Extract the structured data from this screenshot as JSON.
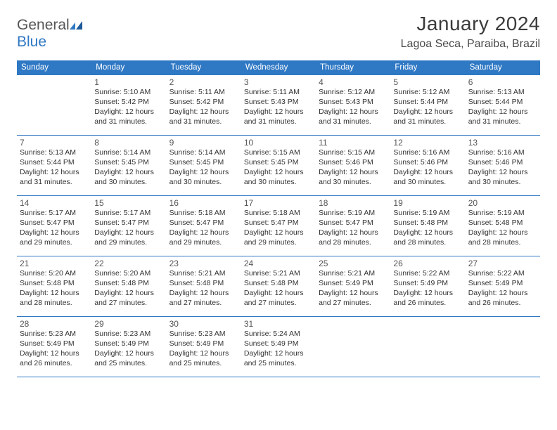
{
  "brand": {
    "name1": "General",
    "name2": "Blue"
  },
  "title": "January 2024",
  "location": "Lagoa Seca, Paraiba, Brazil",
  "colors": {
    "header_bg": "#2f78c4",
    "header_text": "#ffffff",
    "rule": "#2f78c4",
    "text": "#333333",
    "muted": "#555555",
    "page_bg": "#ffffff"
  },
  "typography": {
    "title_fontsize": 28,
    "location_fontsize": 16,
    "dayhead_fontsize": 11.5,
    "cell_fontsize": 10.5,
    "daynum_fontsize": 12
  },
  "day_names": [
    "Sunday",
    "Monday",
    "Tuesday",
    "Wednesday",
    "Thursday",
    "Friday",
    "Saturday"
  ],
  "weeks": [
    [
      null,
      {
        "n": "1",
        "sr": "5:10 AM",
        "ss": "5:42 PM",
        "dl": "12 hours and 31 minutes."
      },
      {
        "n": "2",
        "sr": "5:11 AM",
        "ss": "5:42 PM",
        "dl": "12 hours and 31 minutes."
      },
      {
        "n": "3",
        "sr": "5:11 AM",
        "ss": "5:43 PM",
        "dl": "12 hours and 31 minutes."
      },
      {
        "n": "4",
        "sr": "5:12 AM",
        "ss": "5:43 PM",
        "dl": "12 hours and 31 minutes."
      },
      {
        "n": "5",
        "sr": "5:12 AM",
        "ss": "5:44 PM",
        "dl": "12 hours and 31 minutes."
      },
      {
        "n": "6",
        "sr": "5:13 AM",
        "ss": "5:44 PM",
        "dl": "12 hours and 31 minutes."
      }
    ],
    [
      {
        "n": "7",
        "sr": "5:13 AM",
        "ss": "5:44 PM",
        "dl": "12 hours and 31 minutes."
      },
      {
        "n": "8",
        "sr": "5:14 AM",
        "ss": "5:45 PM",
        "dl": "12 hours and 30 minutes."
      },
      {
        "n": "9",
        "sr": "5:14 AM",
        "ss": "5:45 PM",
        "dl": "12 hours and 30 minutes."
      },
      {
        "n": "10",
        "sr": "5:15 AM",
        "ss": "5:45 PM",
        "dl": "12 hours and 30 minutes."
      },
      {
        "n": "11",
        "sr": "5:15 AM",
        "ss": "5:46 PM",
        "dl": "12 hours and 30 minutes."
      },
      {
        "n": "12",
        "sr": "5:16 AM",
        "ss": "5:46 PM",
        "dl": "12 hours and 30 minutes."
      },
      {
        "n": "13",
        "sr": "5:16 AM",
        "ss": "5:46 PM",
        "dl": "12 hours and 30 minutes."
      }
    ],
    [
      {
        "n": "14",
        "sr": "5:17 AM",
        "ss": "5:47 PM",
        "dl": "12 hours and 29 minutes."
      },
      {
        "n": "15",
        "sr": "5:17 AM",
        "ss": "5:47 PM",
        "dl": "12 hours and 29 minutes."
      },
      {
        "n": "16",
        "sr": "5:18 AM",
        "ss": "5:47 PM",
        "dl": "12 hours and 29 minutes."
      },
      {
        "n": "17",
        "sr": "5:18 AM",
        "ss": "5:47 PM",
        "dl": "12 hours and 29 minutes."
      },
      {
        "n": "18",
        "sr": "5:19 AM",
        "ss": "5:47 PM",
        "dl": "12 hours and 28 minutes."
      },
      {
        "n": "19",
        "sr": "5:19 AM",
        "ss": "5:48 PM",
        "dl": "12 hours and 28 minutes."
      },
      {
        "n": "20",
        "sr": "5:19 AM",
        "ss": "5:48 PM",
        "dl": "12 hours and 28 minutes."
      }
    ],
    [
      {
        "n": "21",
        "sr": "5:20 AM",
        "ss": "5:48 PM",
        "dl": "12 hours and 28 minutes."
      },
      {
        "n": "22",
        "sr": "5:20 AM",
        "ss": "5:48 PM",
        "dl": "12 hours and 27 minutes."
      },
      {
        "n": "23",
        "sr": "5:21 AM",
        "ss": "5:48 PM",
        "dl": "12 hours and 27 minutes."
      },
      {
        "n": "24",
        "sr": "5:21 AM",
        "ss": "5:48 PM",
        "dl": "12 hours and 27 minutes."
      },
      {
        "n": "25",
        "sr": "5:21 AM",
        "ss": "5:49 PM",
        "dl": "12 hours and 27 minutes."
      },
      {
        "n": "26",
        "sr": "5:22 AM",
        "ss": "5:49 PM",
        "dl": "12 hours and 26 minutes."
      },
      {
        "n": "27",
        "sr": "5:22 AM",
        "ss": "5:49 PM",
        "dl": "12 hours and 26 minutes."
      }
    ],
    [
      {
        "n": "28",
        "sr": "5:23 AM",
        "ss": "5:49 PM",
        "dl": "12 hours and 26 minutes."
      },
      {
        "n": "29",
        "sr": "5:23 AM",
        "ss": "5:49 PM",
        "dl": "12 hours and 25 minutes."
      },
      {
        "n": "30",
        "sr": "5:23 AM",
        "ss": "5:49 PM",
        "dl": "12 hours and 25 minutes."
      },
      {
        "n": "31",
        "sr": "5:24 AM",
        "ss": "5:49 PM",
        "dl": "12 hours and 25 minutes."
      },
      null,
      null,
      null
    ]
  ],
  "labels": {
    "sunrise": "Sunrise:",
    "sunset": "Sunset:",
    "daylight": "Daylight:"
  }
}
